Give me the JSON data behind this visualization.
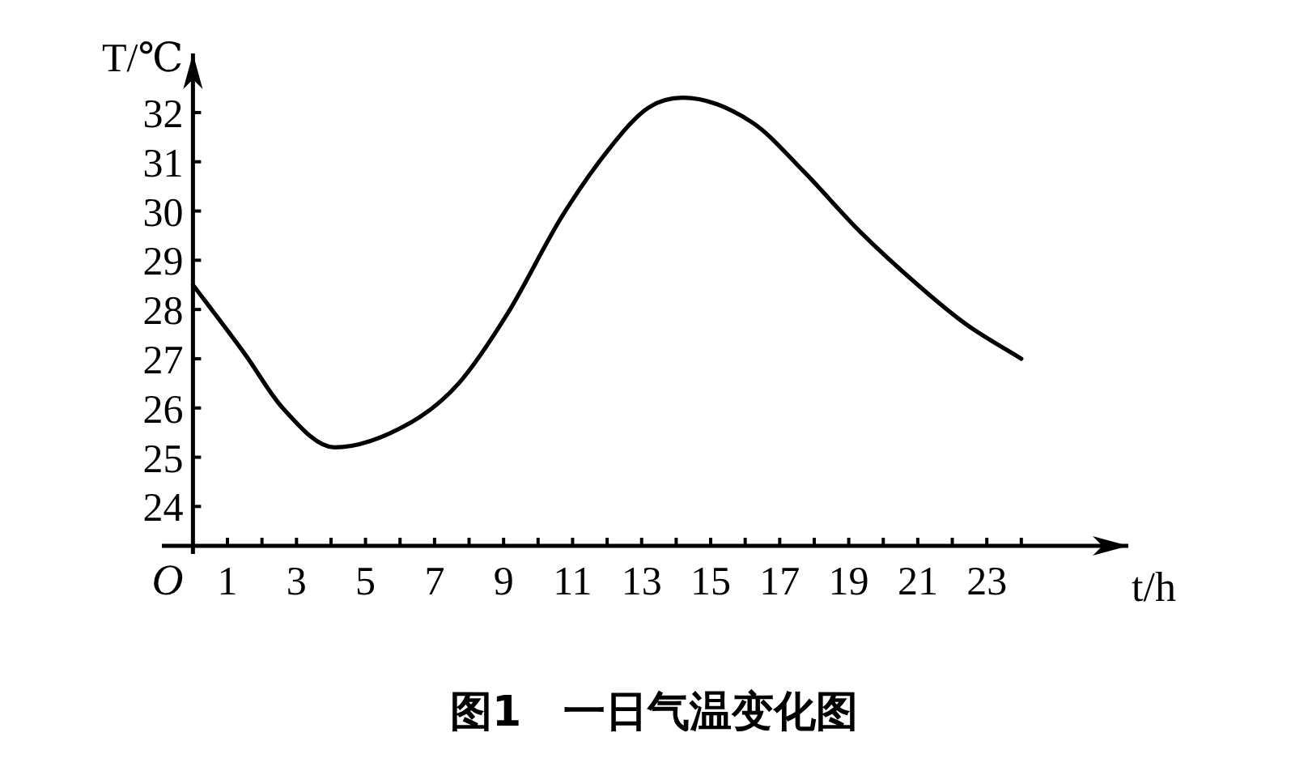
{
  "chart_data": {
    "type": "line",
    "title": "图1　一日气温变化图",
    "xlabel": "t/h",
    "ylabel": "T/℃",
    "xlim": [
      -0.9,
      27.1
    ],
    "ylim": [
      23.2,
      33.2
    ],
    "annotations": [
      "O"
    ],
    "xticks": [
      {
        "value": 0,
        "label": null
      },
      1,
      {
        "value": 2,
        "label": null
      },
      3,
      {
        "value": 4,
        "label": null
      },
      5,
      {
        "value": 6,
        "label": null
      },
      7,
      {
        "value": 8,
        "label": null
      },
      9,
      {
        "value": 10,
        "label": null
      },
      11,
      {
        "value": 12,
        "label": null
      },
      13,
      {
        "value": 14,
        "label": null
      },
      15,
      {
        "value": 16,
        "label": null
      },
      17,
      {
        "value": 18,
        "label": null
      },
      19,
      {
        "value": 20,
        "label": null
      },
      21,
      {
        "value": 22,
        "label": null
      },
      23,
      {
        "value": 24,
        "label": null
      }
    ],
    "yticks": [
      24,
      25,
      26,
      27,
      28,
      29,
      30,
      31,
      32
    ],
    "grid": false,
    "marker": "none",
    "line_style": "solid",
    "series": [
      {
        "color": "#000000",
        "x": [
          0,
          1.5,
          2.6,
          4.1,
          6.3,
          7.7,
          9.1,
          10.7,
          12.1,
          13.2,
          14.2,
          16.2,
          17.7,
          19.3,
          21.0,
          22.4,
          24.0
        ],
        "values": [
          28.5,
          27.1,
          26.0,
          25.2,
          25.7,
          26.5,
          27.9,
          29.9,
          31.3,
          32.1,
          32.3,
          31.8,
          30.8,
          29.6,
          28.5,
          27.7,
          27.0
        ]
      }
    ]
  }
}
